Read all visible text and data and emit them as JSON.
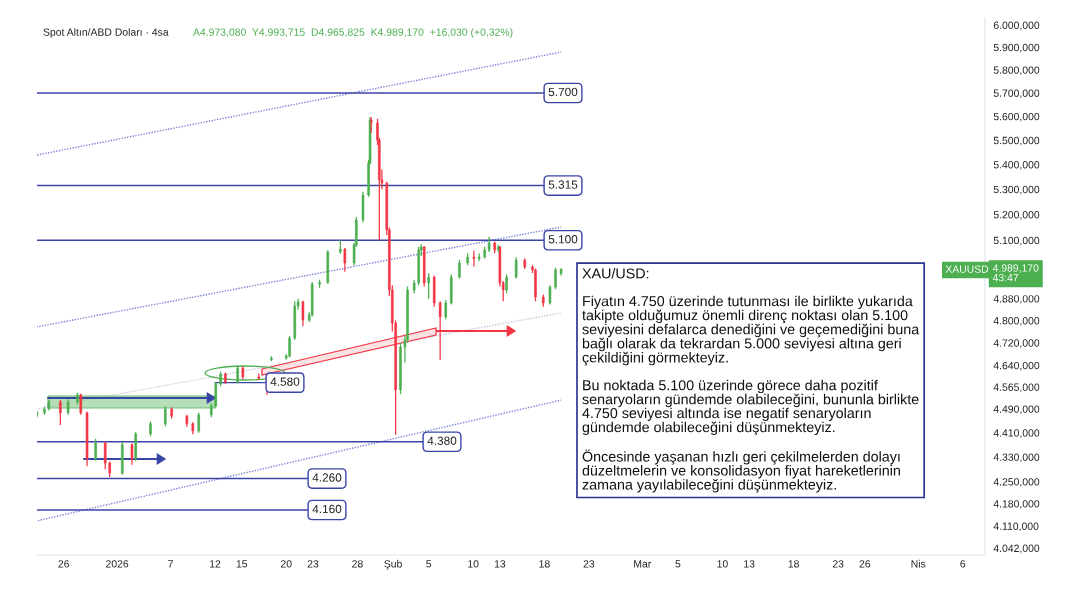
{
  "chart_data": {
    "type": "candlestick",
    "title": "Spot Altın/ABD Doları · 4sa",
    "subtitle": "A4.973,080  Y4.993,715  D4.965,825  K4.989,170  +16,030 (+0,32%)",
    "x": [
      "2025-12-23T00:00",
      "2025-12-23T20:00",
      "2025-12-24T08:00",
      "2025-12-25T15:00",
      "2025-12-26T12:00",
      "2025-12-27T13:00",
      "2025-12-27T22:00",
      "2025-12-28T15:00",
      "2025-12-29T14:00",
      "2025-12-30T16:00",
      "2025-12-31T04:00",
      "2026-01-01T14:00",
      "2026-01-02T16:00",
      "2026-01-03T02:00",
      "2026-01-04T18:00",
      "2026-01-06T10:00",
      "2026-01-07T03:00",
      "2026-01-08T20:00",
      "2026-01-09T12:00",
      "2026-01-10T04:00",
      "2026-01-11T14:00",
      "2026-01-12T02:00",
      "2026-01-12T15:00",
      "2026-01-13T04:00",
      "2026-01-14T13:00",
      "2026-01-15T03:00",
      "2026-01-16T22:00",
      "2026-01-17T20:00",
      "2026-01-18T08:00",
      "2026-01-20T00:00",
      "2026-01-20T09:00",
      "2026-01-20T23:00",
      "2026-01-21T08:00",
      "2026-01-21T21:00",
      "2026-01-22T14:00",
      "2026-01-22T22:00",
      "2026-01-23T18:00",
      "2026-01-24T16:00",
      "2026-01-26T02:00",
      "2026-01-26T14:00",
      "2026-01-27T15:00",
      "2026-01-27T21:00",
      "2026-01-28T15:00",
      "2026-01-29T06:00",
      "2026-01-29T10:00",
      "2026-01-29T13:00",
      "2026-01-30T06:00",
      "2026-01-30T11:00",
      "2026-01-30T18:00",
      "2026-01-31T07:00",
      "2026-01-31T14:00",
      "2026-01-31T22:00",
      "2026-02-01T07:00",
      "2026-02-01T20:00",
      "2026-02-02T08:00",
      "2026-02-02T15:00",
      "2026-02-03T09:00",
      "2026-02-03T21:00",
      "2026-02-04T04:00",
      "2026-02-04T12:00",
      "2026-02-05T00:00",
      "2026-02-05T15:00",
      "2026-02-06T07:00",
      "2026-02-06T22:00",
      "2026-02-07T13:00",
      "2026-02-08T11:00",
      "2026-02-09T09:00",
      "2026-02-10T02:00",
      "2026-02-10T16:00",
      "2026-02-11T07:00",
      "2026-02-11T19:00",
      "2026-02-12T10:00",
      "2026-02-12T20:00",
      "2026-02-13T00:00",
      "2026-02-13T09:00",
      "2026-02-13T18:00",
      "2026-02-14T20:00",
      "2026-02-15T19:00",
      "2026-02-16T16:00",
      "2026-02-17T00:00",
      "2026-02-17T21:00",
      "2026-02-18T15:00",
      "2026-02-19T06:00",
      "2026-02-19T21:00"
    ],
    "ohlc": [
      [
        4470,
        4485,
        4462,
        4477
      ],
      [
        4477,
        4498,
        4470,
        4490
      ],
      [
        4490,
        4520,
        4485,
        4514
      ],
      [
        4514,
        4520,
        4436,
        4477
      ],
      [
        4477,
        4522,
        4470,
        4514
      ],
      [
        4514,
        4545,
        4505,
        4538
      ],
      [
        4538,
        4542,
        4470,
        4477
      ],
      [
        4477,
        4480,
        4300,
        4324
      ],
      [
        4324,
        4390,
        4318,
        4376
      ],
      [
        4376,
        4380,
        4290,
        4310
      ],
      [
        4310,
        4315,
        4265,
        4278
      ],
      [
        4278,
        4380,
        4272,
        4370
      ],
      [
        4370,
        4375,
        4305,
        4324
      ],
      [
        4324,
        4412,
        4318,
        4406
      ],
      [
        4406,
        4448,
        4398,
        4440
      ],
      [
        4440,
        4498,
        4432,
        4490
      ],
      [
        4490,
        4495,
        4458,
        4466
      ],
      [
        4466,
        4470,
        4430,
        4440
      ],
      [
        4440,
        4445,
        4405,
        4416
      ],
      [
        4416,
        4478,
        4410,
        4470
      ],
      [
        4470,
        4508,
        4462,
        4500
      ],
      [
        4500,
        4582,
        4495,
        4576
      ],
      [
        4576,
        4618,
        4568,
        4610
      ],
      [
        4610,
        4615,
        4575,
        4583
      ],
      [
        4583,
        4640,
        4578,
        4631
      ],
      [
        4631,
        4636,
        4592,
        4600
      ],
      [
        4600,
        4612,
        4590,
        4595
      ],
      [
        4595,
        4600,
        4538,
        4583
      ],
      [
        4660,
        4672,
        4655,
        4666
      ],
      [
        4666,
        4680,
        4660,
        4673
      ],
      [
        4673,
        4745,
        4668,
        4737
      ],
      [
        4737,
        4870,
        4730,
        4853
      ],
      [
        4853,
        4880,
        4840,
        4868
      ],
      [
        4868,
        4872,
        4780,
        4802
      ],
      [
        4802,
        4830,
        4795,
        4820
      ],
      [
        4820,
        4942,
        4815,
        4934
      ],
      [
        4934,
        4950,
        4920,
        4940
      ],
      [
        4940,
        5062,
        4935,
        5055
      ],
      [
        5055,
        5100,
        5048,
        5066
      ],
      [
        5066,
        5070,
        4980,
        5013
      ],
      [
        5013,
        5090,
        5005,
        5082
      ],
      [
        5082,
        5190,
        5075,
        5179
      ],
      [
        5179,
        5290,
        5170,
        5277
      ],
      [
        5277,
        5420,
        5270,
        5407
      ],
      [
        5407,
        5597,
        5400,
        5585
      ],
      [
        5585,
        5597,
        5530,
        5572
      ],
      [
        5572,
        5590,
        5480,
        5501
      ],
      [
        5501,
        5510,
        5100,
        5338
      ],
      [
        5338,
        5380,
        5300,
        5325
      ],
      [
        5325,
        5330,
        5120,
        5140
      ],
      [
        5140,
        5150,
        4890,
        4912
      ],
      [
        4912,
        4930,
        4760,
        4791
      ],
      [
        4791,
        4800,
        4403,
        4555
      ],
      [
        4555,
        4720,
        4540,
        4705
      ],
      [
        4705,
        4745,
        4650,
        4730
      ],
      [
        4730,
        4925,
        4720,
        4912
      ],
      [
        4912,
        4950,
        4900,
        4938
      ],
      [
        4938,
        5075,
        4930,
        5063
      ],
      [
        5063,
        5085,
        5040,
        5074
      ],
      [
        5074,
        5078,
        4925,
        4938
      ],
      [
        4938,
        4975,
        4880,
        4960
      ],
      [
        4960,
        4965,
        4850,
        4864
      ],
      [
        4864,
        4870,
        4659,
        4813
      ],
      [
        4813,
        4875,
        4805,
        4864
      ],
      [
        4864,
        4970,
        4858,
        4960
      ],
      [
        4960,
        5025,
        4955,
        5013
      ],
      [
        5013,
        5050,
        5005,
        5036
      ],
      [
        5036,
        5060,
        5000,
        5030
      ],
      [
        5030,
        5050,
        5020,
        5036
      ],
      [
        5036,
        5075,
        5030,
        5063
      ],
      [
        5063,
        5113,
        5055,
        5089
      ],
      [
        5089,
        5095,
        5050,
        5063
      ],
      [
        5063,
        5082,
        5055,
        5074
      ],
      [
        5074,
        5078,
        4925,
        4938
      ],
      [
        4938,
        4945,
        4870,
        4912
      ],
      [
        4912,
        4970,
        4900,
        4960
      ],
      [
        4960,
        5035,
        4955,
        5024
      ],
      [
        5024,
        5030,
        4990,
        4998
      ],
      [
        4998,
        5005,
        4975,
        4987
      ],
      [
        4987,
        4992,
        4870,
        4886
      ],
      [
        4886,
        4895,
        4850,
        4864
      ],
      [
        4864,
        4930,
        4858,
        4923
      ],
      [
        4923,
        4995,
        4915,
        4987
      ],
      [
        4973.08,
        4993.715,
        4965.825,
        4989.17
      ]
    ],
    "colors": [
      "#4caf50",
      "#4caf50",
      "#4caf50",
      "#f23645",
      "#4caf50",
      "#4caf50",
      "#f23645",
      "#f23645",
      "#4caf50",
      "#f23645",
      "#f23645",
      "#4caf50",
      "#f23645",
      "#4caf50",
      "#4caf50",
      "#4caf50",
      "#f23645",
      "#f23645",
      "#f23645",
      "#4caf50",
      "#4caf50",
      "#4caf50",
      "#4caf50",
      "#f23645",
      "#4caf50",
      "#f23645",
      "#f23645",
      "#f23645",
      "#4caf50",
      "#4caf50",
      "#4caf50",
      "#4caf50",
      "#4caf50",
      "#f23645",
      "#4caf50",
      "#4caf50",
      "#4caf50",
      "#4caf50",
      "#4caf50",
      "#f23645",
      "#4caf50",
      "#4caf50",
      "#4caf50",
      "#4caf50",
      "#4caf50",
      "#f23645",
      "#f23645",
      "#f23645",
      "#f23645",
      "#f23645",
      "#f23645",
      "#f23645",
      "#f23645",
      "#4caf50",
      "#4caf50",
      "#4caf50",
      "#4caf50",
      "#4caf50",
      "#4caf50",
      "#f23645",
      "#4caf50",
      "#f23645",
      "#f23645",
      "#4caf50",
      "#4caf50",
      "#4caf50",
      "#4caf50",
      "#f23645",
      "#4caf50",
      "#4caf50",
      "#4caf50",
      "#f23645",
      "#4caf50",
      "#f23645",
      "#f23645",
      "#4caf50",
      "#4caf50",
      "#f23645",
      "#f23645",
      "#f23645",
      "#f23645",
      "#4caf50",
      "#4caf50",
      "#4caf50"
    ],
    "series": [
      {
        "type": "line",
        "x": [
          "2025-12-23T00:00",
          "2026-02-19T21:00"
        ],
        "values": [
          5439,
          5879
        ],
        "color": "#7b83d6",
        "line_style": "dotted"
      },
      {
        "type": "line",
        "x": [
          "2025-12-23T00:00",
          "2026-02-19T21:00"
        ],
        "values": [
          4777,
          5151
        ],
        "color": "#7b83d6",
        "line_style": "dotted"
      },
      {
        "type": "line",
        "x": [
          "2025-12-23T00:00",
          "2026-02-19T21:00"
        ],
        "values": [
          4490,
          4828
        ],
        "color": "#c8cbe0",
        "line_style": "dotted"
      },
      {
        "type": "line",
        "x": [
          "2025-12-23T00:00",
          "2026-02-19T21:00"
        ],
        "values": [
          4126,
          4520
        ],
        "color": "#7b83d6",
        "line_style": "dotted"
      }
    ],
    "ref_lines": [
      {
        "axis": "y",
        "value": 5700,
        "label": "5.700",
        "color": "#3a45a8"
      },
      {
        "axis": "y",
        "value": 5315,
        "label": "5.315",
        "color": "#3a45a8"
      },
      {
        "axis": "y",
        "value": 5100,
        "label": "5.100",
        "color": "#3a45a8"
      },
      {
        "axis": "y",
        "value": 4580,
        "label": "4.580",
        "color": "#3a45a8"
      },
      {
        "axis": "y",
        "value": 4380,
        "label": "4.380",
        "color": "#3a45a8"
      },
      {
        "axis": "y",
        "value": 4260,
        "label": "4.260",
        "color": "#3a45a8"
      },
      {
        "axis": "y",
        "value": 4160,
        "label": "4.160",
        "color": "#3a45a8"
      }
    ],
    "annotations": [
      "XAU/USD:\n\nFiyatın 4.750 üzerinde tutunması ile birlikte yukarıda\ntakipte olduğumuz önemli direnç noktası olan 5.100\nseviyesini defalarca denediğini ve geçemediğini buna\nbağlı olarak da tekrardan 5.000 seviyesi altına geri\nçekildiğini görmekteyiz.\n\nBu noktada 5.100 üzerinde görece daha pozitif\nsenaryoların gündemde olabileceğini, bununla birlikte\n4.750 seviyesi altında ise negatif senaryoların\ngündemde olabileceğini düşünmekteyiz.\n\nÖncesinde yaşanan hızlı geri çekilmelerden dolayı\ndüzeltmelerin ve konsolidasyon fiyat hareketlerinin\nzamana yayılabileceğini düşünmekteyiz.",
      "XAUUSD",
      "4.989,170\n43:47"
    ],
    "log": true,
    "xlim": [
      "2025-12-23T00:00",
      "2026-04-08T12:00"
    ],
    "xticks": [
      {
        "value": "2025-12-26",
        "label": "26"
      },
      {
        "value": "2026-01-01",
        "label": "2026"
      },
      {
        "value": "2026-01-07",
        "label": "7"
      },
      {
        "value": "2026-01-12",
        "label": "12"
      },
      {
        "value": "2026-01-15",
        "label": "15"
      },
      {
        "value": "2026-01-20",
        "label": "20"
      },
      {
        "value": "2026-01-23",
        "label": "23"
      },
      {
        "value": "2026-01-28",
        "label": "28"
      },
      {
        "value": "2026-02-01",
        "label": "Şub"
      },
      {
        "value": "2026-02-05",
        "label": "5"
      },
      {
        "value": "2026-02-10",
        "label": "10"
      },
      {
        "value": "2026-02-13",
        "label": "13"
      },
      {
        "value": "2026-02-18",
        "label": "18"
      },
      {
        "value": "2026-02-23",
        "label": "23"
      },
      {
        "value": "2026-03-01",
        "label": "Mar"
      },
      {
        "value": "2026-03-05",
        "label": "5"
      },
      {
        "value": "2026-03-10",
        "label": "10"
      },
      {
        "value": "2026-03-13",
        "label": "13"
      },
      {
        "value": "2026-03-18",
        "label": "18"
      },
      {
        "value": "2026-03-23",
        "label": "23"
      },
      {
        "value": "2026-03-26",
        "label": "26"
      },
      {
        "value": "2026-04-01",
        "label": "Nis"
      },
      {
        "value": "2026-04-06",
        "label": "6"
      }
    ],
    "ylim": [
      4021,
      6032
    ],
    "yticks": [
      {
        "value": 4042,
        "label": "4.042,000"
      },
      {
        "value": 4110,
        "label": "4.110,000"
      },
      {
        "value": 4180,
        "label": "4.180,000"
      },
      {
        "value": 4250,
        "label": "4.250,000"
      },
      {
        "value": 4330,
        "label": "4.330,000"
      },
      {
        "value": 4410,
        "label": "4.410,000"
      },
      {
        "value": 4490,
        "label": "4.490,000"
      },
      {
        "value": 4565,
        "label": "4.565,000"
      },
      {
        "value": 4640,
        "label": "4.640,000"
      },
      {
        "value": 4720,
        "label": "4.720,000"
      },
      {
        "value": 4800,
        "label": "4.800,000"
      },
      {
        "value": 4880,
        "label": "4.880,000"
      },
      {
        "value": 5100,
        "label": "5.100,000"
      },
      {
        "value": 5200,
        "label": "5.200,000"
      },
      {
        "value": 5300,
        "label": "5.300,000"
      },
      {
        "value": 5400,
        "label": "5.400,000"
      },
      {
        "value": 5500,
        "label": "5.500,000"
      },
      {
        "value": 5600,
        "label": "5.600,000"
      },
      {
        "value": 5700,
        "label": "5.700,000"
      },
      {
        "value": 5800,
        "label": "5.800,000"
      },
      {
        "value": 5900,
        "label": "5.900,000"
      },
      {
        "value": 6000,
        "label": "6.000,000"
      }
    ]
  }
}
